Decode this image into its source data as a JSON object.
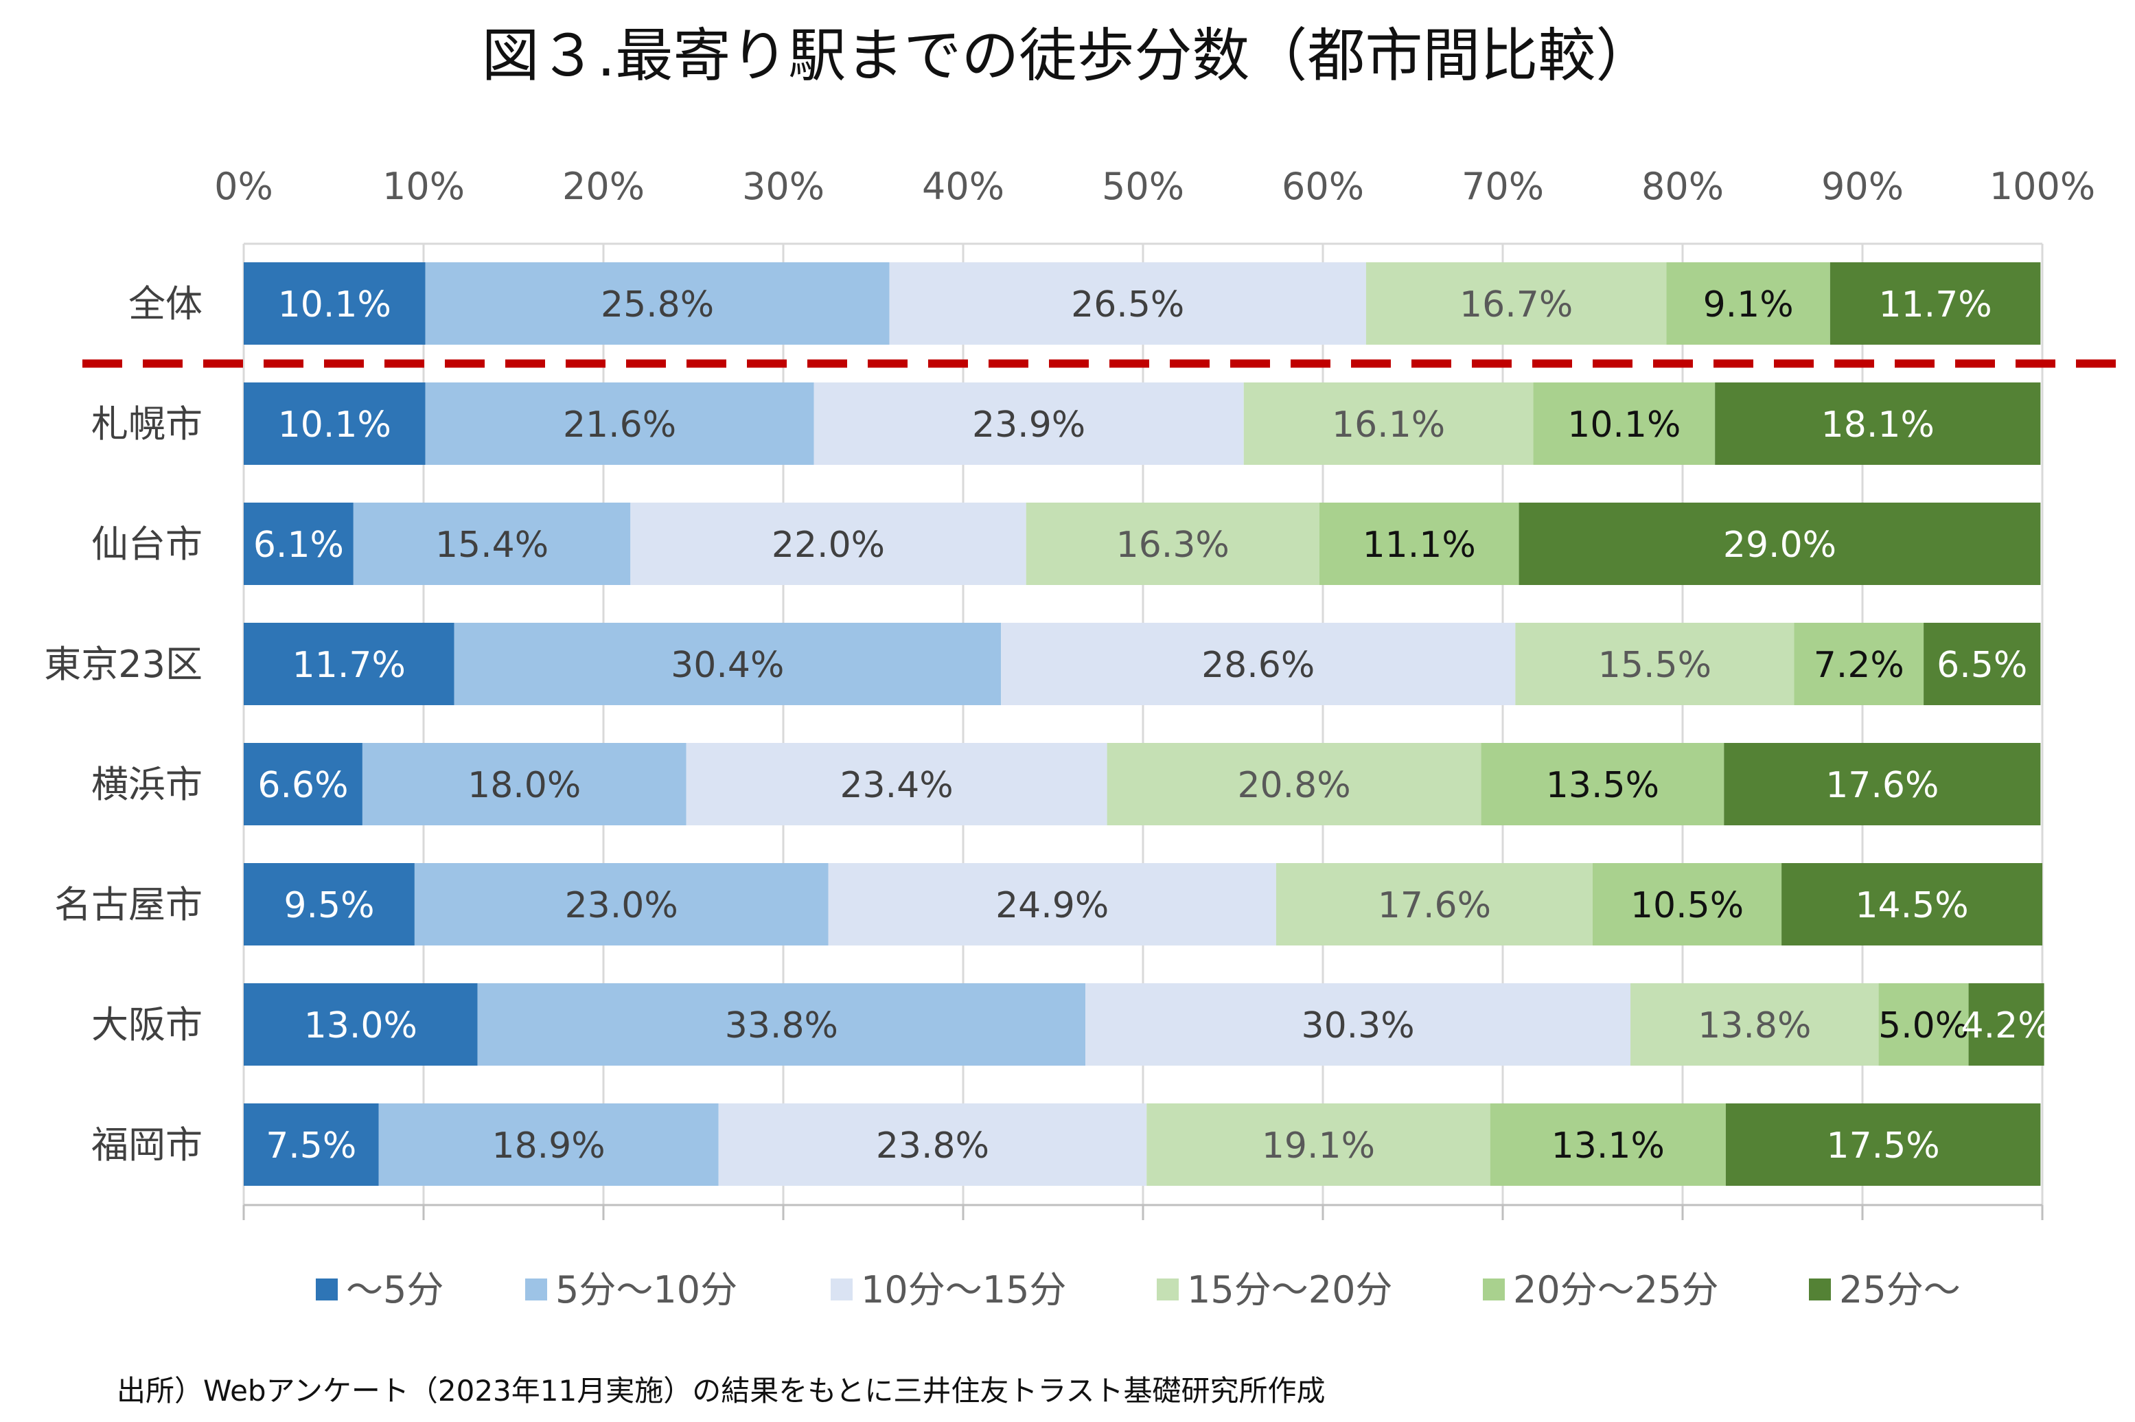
{
  "chart_data": {
    "type": "bar",
    "orientation": "horizontal",
    "stacked": true,
    "title": "図３.最寄り駅までの徒歩分数（都市間比較）",
    "categories": [
      "全体",
      "札幌市",
      "仙台市",
      "東京23区",
      "横浜市",
      "名古屋市",
      "大阪市",
      "福岡市"
    ],
    "series": [
      {
        "name": "～5分",
        "color": "#2E75B6",
        "label_color": "#ffffff",
        "values": [
          10.1,
          10.1,
          6.1,
          11.7,
          6.6,
          9.5,
          13.0,
          7.5
        ]
      },
      {
        "name": "5分～10分",
        "color": "#9DC3E6",
        "label_color": "#404040",
        "values": [
          25.8,
          21.6,
          15.4,
          30.4,
          18.0,
          23.0,
          33.8,
          18.9
        ]
      },
      {
        "name": "10分～15分",
        "color": "#DAE3F3",
        "label_color": "#404040",
        "values": [
          26.5,
          23.9,
          22.0,
          28.6,
          23.4,
          24.9,
          30.3,
          23.8
        ]
      },
      {
        "name": "15分～20分",
        "color": "#C5E0B4",
        "label_color": "#595959",
        "values": [
          16.7,
          16.1,
          16.3,
          15.5,
          20.8,
          17.6,
          13.8,
          19.1
        ]
      },
      {
        "name": "20分～25分",
        "color": "#A9D18E",
        "label_color": "#111111",
        "values": [
          9.1,
          10.1,
          11.1,
          7.2,
          13.5,
          10.5,
          5.0,
          13.1
        ]
      },
      {
        "name": "25分～",
        "color": "#548235",
        "label_color": "#ffffff",
        "values": [
          11.7,
          18.1,
          29.0,
          6.5,
          17.6,
          14.5,
          4.2,
          17.5
        ]
      }
    ],
    "xlim": [
      0,
      100
    ],
    "x_ticks": [
      "0%",
      "10%",
      "20%",
      "30%",
      "40%",
      "50%",
      "60%",
      "70%",
      "80%",
      "90%",
      "100%"
    ],
    "xlabel": "",
    "ylabel": "",
    "legend": "bottom",
    "separator_after": "全体",
    "separator_color": "#C00000",
    "source": "出所）Webアンケート（2023年11月実施）の結果をもとに三井住友トラスト基礎研究所作成"
  }
}
